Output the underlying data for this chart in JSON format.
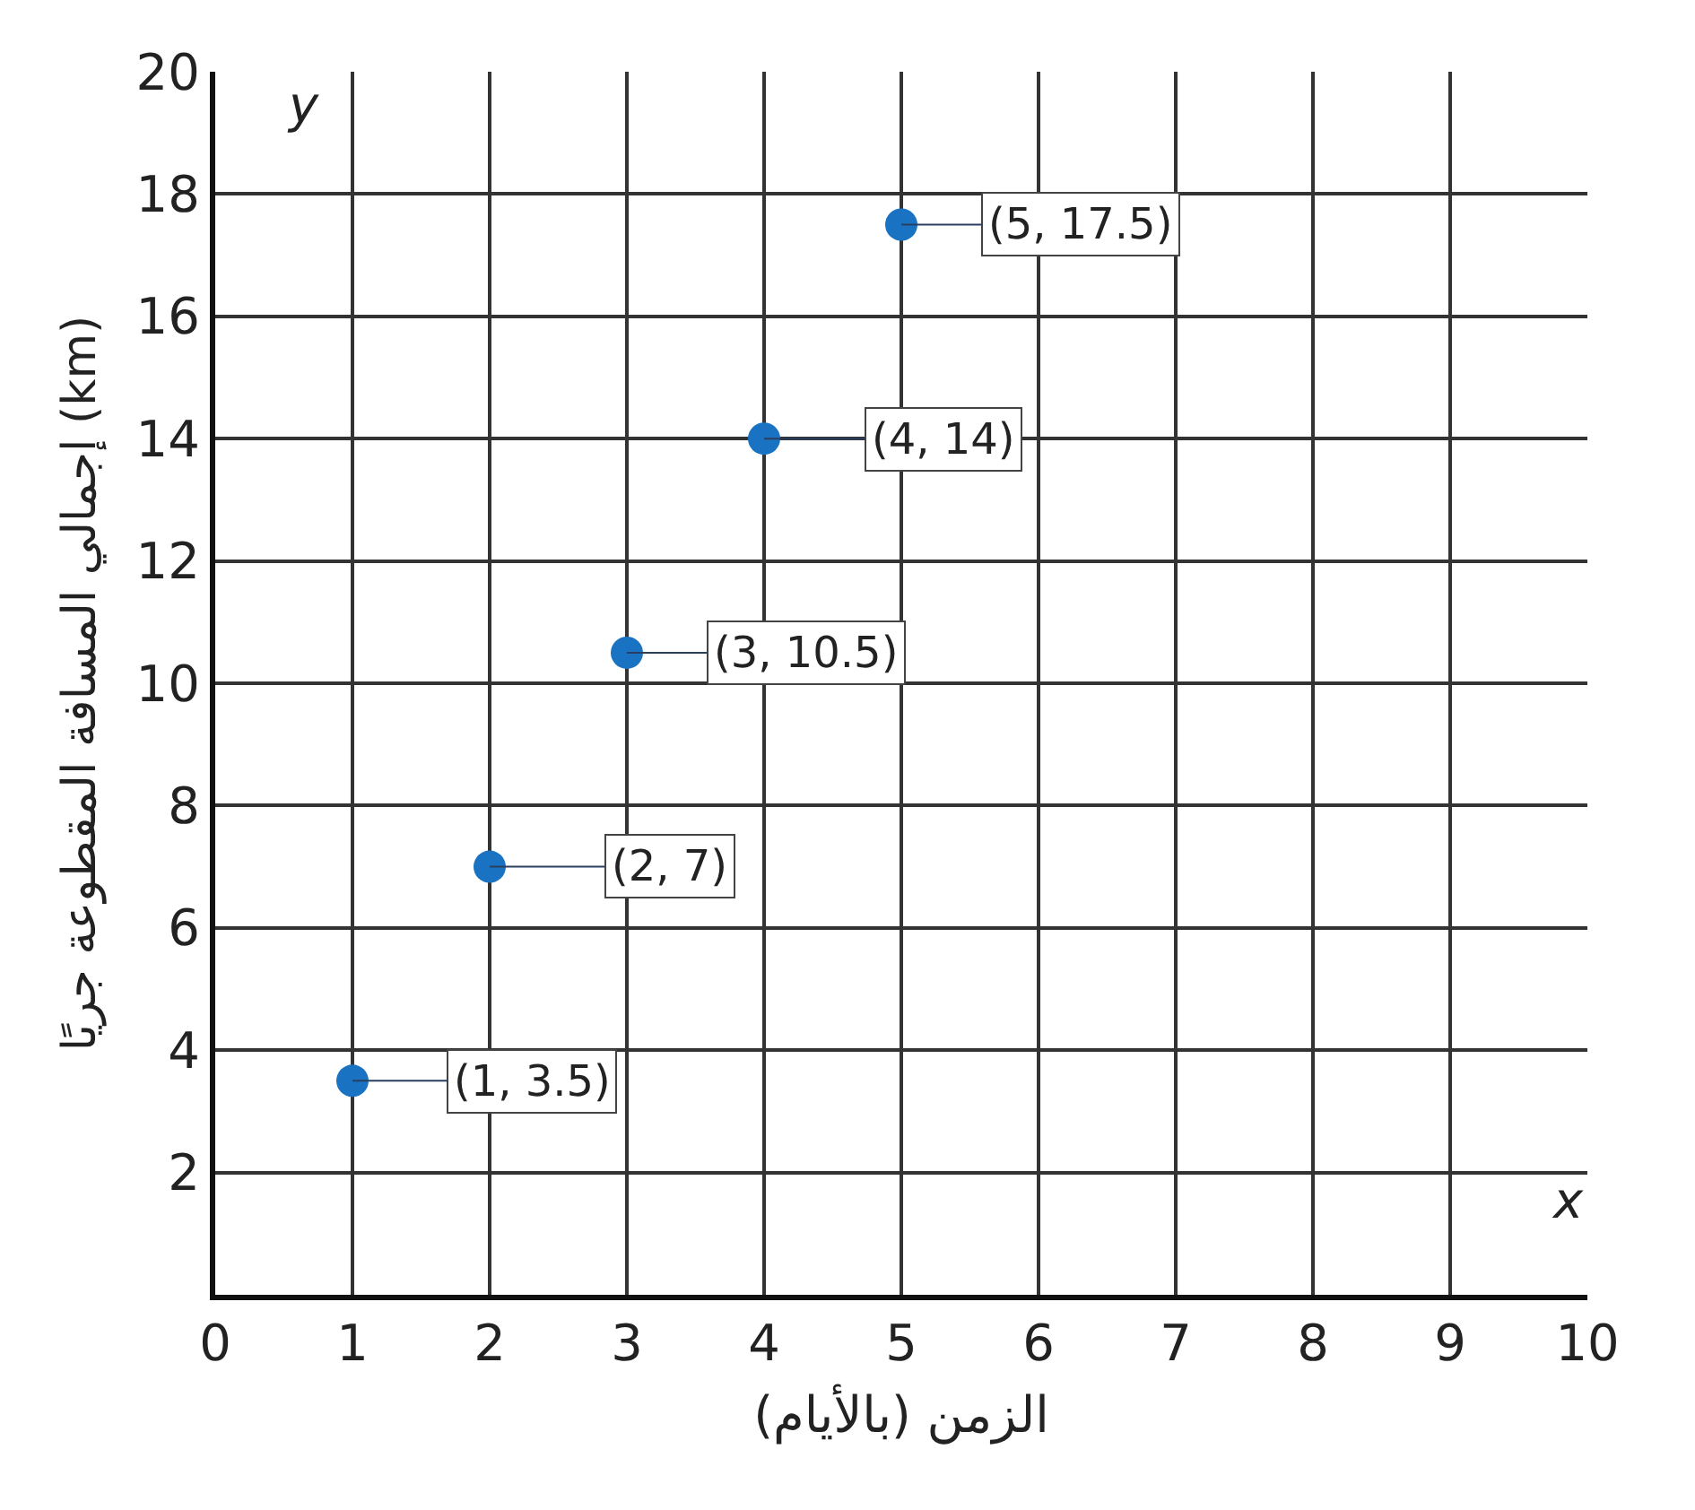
{
  "chart_data": {
    "type": "scatter",
    "xlabel": "الزمن (بالأيام)",
    "ylabel": "إجمالي المسافة المقطوعة جريًا (km)",
    "x": [
      1,
      2,
      3,
      4,
      5
    ],
    "series": [
      {
        "color": "#1a73c2",
        "values": [
          3.5,
          7,
          10.5,
          14,
          17.5
        ],
        "value_labels": [
          "(1, 3.5)",
          "(2, 7)",
          "(3, 10.5)",
          "(4, 14)",
          "(5, 17.5)"
        ]
      }
    ],
    "xlim": [
      0,
      10
    ],
    "ylim": [
      0,
      20
    ],
    "xticks": [
      0,
      1,
      2,
      3,
      4,
      5,
      6,
      7,
      8,
      9,
      10
    ],
    "yticks": [
      2,
      4,
      6,
      8,
      10,
      12,
      14,
      16,
      18,
      20
    ],
    "annotations": [
      "y",
      "x"
    ],
    "grid": true,
    "marker": "circle",
    "legend": false
  }
}
